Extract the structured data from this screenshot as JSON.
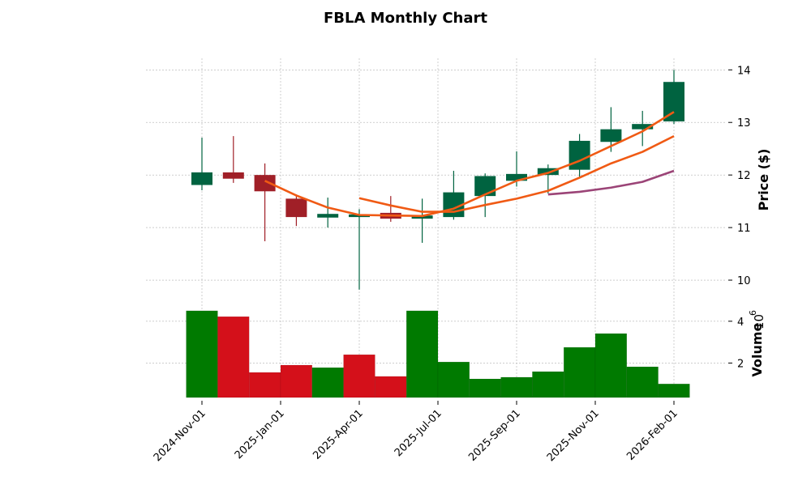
{
  "chart_data": {
    "type": "candlestick",
    "title": "FBLA Monthly Chart",
    "ylabel": "Price ($)",
    "volume_label": "Volume",
    "volume_exponent_label": "10",
    "volume_exponent_power": "6",
    "ylim": [
      9.6,
      14.22
    ],
    "volume_ylim": [
      0.35,
      4.96
    ],
    "yticks": [
      10,
      11,
      12,
      13,
      14
    ],
    "volume_yticks": [
      2,
      4
    ],
    "grid": true,
    "dates": [
      "2024-Nov",
      "2024-Dec",
      "2025-Jan",
      "2025-Feb",
      "2025-Mar",
      "2025-Apr",
      "2025-May",
      "2025-Jun",
      "2025-Jul",
      "2025-Aug",
      "2025-Sep",
      "2025-Oct",
      "2025-Nov",
      "2025-Dec",
      "2026-Jan",
      "2026-Feb"
    ],
    "open": [
      11.81,
      12.05,
      12.0,
      11.55,
      11.19,
      11.2,
      11.28,
      11.17,
      11.2,
      11.6,
      11.89,
      12.0,
      12.1,
      12.63,
      12.87,
      13.02
    ],
    "high": [
      12.71,
      12.74,
      12.22,
      11.63,
      11.57,
      11.35,
      11.6,
      11.55,
      12.08,
      12.03,
      12.45,
      12.2,
      12.78,
      13.29,
      13.22,
      14.0
    ],
    "low": [
      11.71,
      11.85,
      10.74,
      11.03,
      11.0,
      9.82,
      11.11,
      10.71,
      11.15,
      11.2,
      11.78,
      11.65,
      11.97,
      12.44,
      12.55,
      12.97
    ],
    "close": [
      12.05,
      11.93,
      11.69,
      11.2,
      11.26,
      11.25,
      11.17,
      11.23,
      11.67,
      11.98,
      12.02,
      12.13,
      12.65,
      12.87,
      12.97,
      13.77
    ],
    "volume_millions": [
      4.5,
      4.22,
      1.55,
      1.9,
      1.78,
      2.4,
      1.36,
      4.5,
      2.05,
      1.24,
      1.32,
      1.59,
      2.75,
      3.41,
      1.82,
      1.0
    ],
    "volume_up": [
      true,
      false,
      false,
      false,
      true,
      false,
      false,
      true,
      true,
      true,
      true,
      true,
      true,
      true,
      true,
      true
    ],
    "moving_averages": [
      {
        "name": "MA3",
        "color": "#f05a14",
        "start_index": 2,
        "values": [
          11.89,
          11.61,
          11.38,
          11.24,
          11.23,
          11.22,
          11.36,
          11.63,
          11.89,
          12.04,
          12.27,
          12.55,
          12.83,
          13.2
        ]
      },
      {
        "name": "MA6",
        "color": "#f05a14",
        "start_index": 5,
        "values": [
          11.56,
          11.42,
          11.3,
          11.3,
          11.43,
          11.55,
          11.7,
          11.95,
          12.22,
          12.44,
          12.74
        ]
      },
      {
        "name": "MA12",
        "color": "#9b4477",
        "start_index": 11,
        "values": [
          11.63,
          11.68,
          11.76,
          11.87,
          12.08
        ]
      }
    ],
    "xticks": [
      {
        "index": 0,
        "label": "2024-Nov-01"
      },
      {
        "index": 2.5,
        "label": "2025-Jan-01"
      },
      {
        "index": 5,
        "label": "2025-Apr-01"
      },
      {
        "index": 7.5,
        "label": "2025-Jul-01"
      },
      {
        "index": 10,
        "label": "2025-Sep-01"
      },
      {
        "index": 12.5,
        "label": "2025-Nov-01"
      },
      {
        "index": 15,
        "label": "2026-Feb-01"
      }
    ],
    "colors": {
      "candle_up": "#006340",
      "candle_down": "#a01f27",
      "volume_up": "#007a00",
      "volume_down": "#d4101a"
    }
  }
}
